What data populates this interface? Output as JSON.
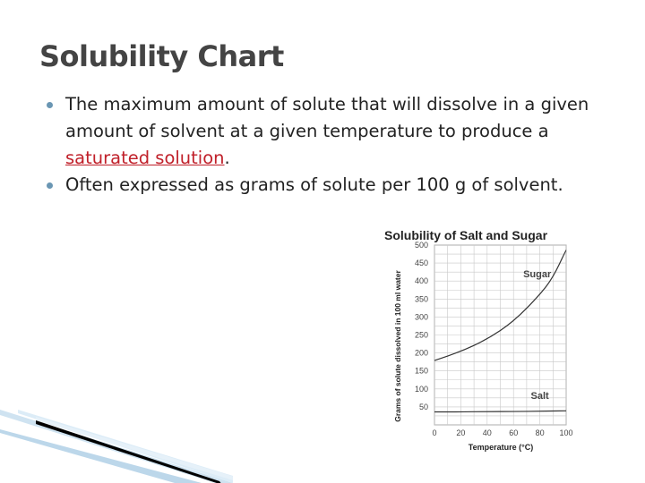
{
  "slide": {
    "title": "Solubility Chart",
    "bullets": [
      {
        "before": "The maximum amount of solute that will dissolve in a given amount of solvent at a given temperature to produce a ",
        "link": "saturated solution",
        "after": "."
      },
      {
        "text": "Often expressed as grams of solute per 100 g of solvent."
      }
    ],
    "colors": {
      "bullet": "#6a96b3",
      "link": "#c0202a",
      "title": "#444444"
    }
  },
  "chart_data": {
    "type": "line",
    "title": "Solubility of Salt and Sugar",
    "xlabel": "Temperature (°C)",
    "ylabel": "Grams of solute dissolved in 100 ml water",
    "xlim": [
      0,
      100
    ],
    "ylim": [
      0,
      500
    ],
    "x_ticks": [
      "0",
      "20",
      "40",
      "60",
      "80",
      "100"
    ],
    "y_ticks": [
      "50",
      "100",
      "150",
      "200",
      "250",
      "300",
      "350",
      "400",
      "450",
      "500"
    ],
    "grid": true,
    "series": [
      {
        "name": "Sugar",
        "x": [
          0,
          20,
          40,
          60,
          80,
          90,
          100
        ],
        "y": [
          179,
          204,
          238,
          287,
          362,
          410,
          487
        ]
      },
      {
        "name": "Salt",
        "x": [
          0,
          20,
          40,
          60,
          80,
          100
        ],
        "y": [
          36,
          36,
          37,
          37,
          38,
          39
        ]
      }
    ]
  }
}
